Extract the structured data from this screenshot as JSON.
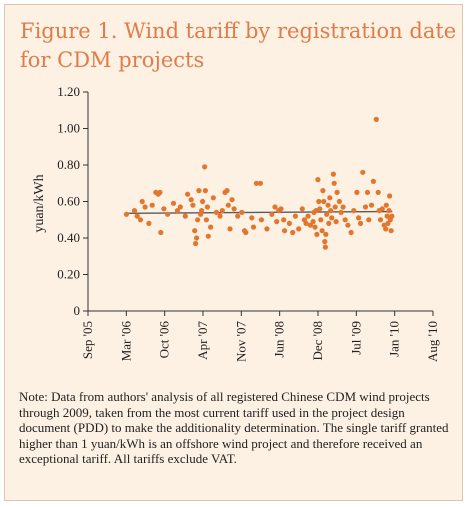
{
  "figure": {
    "title": "Figure 1. Wind tariff by registration date for CDM projects",
    "note": "Note: Data from authors' analysis of all registered Chinese CDM wind projects through 2009, taken from the most current tariff used in the project design document (PDD) to make the additionality determination. The single tariff granted higher than 1 yuan/kWh is an offshore wind project and therefore received an exceptional tariff. All tariffs exclude VAT."
  },
  "colors": {
    "background": "#fcf1e2",
    "title": "#e07b4a",
    "points": "#e2762f",
    "trend_line": "#5a5a5a",
    "axis": "#333333"
  },
  "chart_data": {
    "type": "scatter",
    "title": "",
    "xlabel": "",
    "ylabel": "yuan/kWh",
    "x_ticks": [
      "Sep '05",
      "Mar '06",
      "Oct '06",
      "Apr '07",
      "Nov '07",
      "Jun '08",
      "Dec '08",
      "Jul '09",
      "Jan '10",
      "Aug '10"
    ],
    "xlim": [
      "2005-09",
      "2010-08"
    ],
    "ylim": [
      0,
      1.2
    ],
    "y_ticks": [
      "0",
      "0.20",
      "0.40",
      "0.60",
      "0.80",
      "1.00",
      "1.20"
    ],
    "grid": false,
    "trend_line": {
      "x": [
        "2006-03-15",
        "2010-01-01"
      ],
      "y": [
        0.535,
        0.545
      ]
    },
    "series": [
      {
        "points": [
          {
            "x": "2006-03-20",
            "y": 0.53
          },
          {
            "x": "2006-05-01",
            "y": 0.55
          },
          {
            "x": "2006-05-15",
            "y": 0.52
          },
          {
            "x": "2006-06-01",
            "y": 0.5
          },
          {
            "x": "2006-06-10",
            "y": 0.6
          },
          {
            "x": "2006-06-25",
            "y": 0.57
          },
          {
            "x": "2006-07-15",
            "y": 0.48
          },
          {
            "x": "2006-08-01",
            "y": 0.58
          },
          {
            "x": "2006-08-20",
            "y": 0.65
          },
          {
            "x": "2006-09-01",
            "y": 0.64
          },
          {
            "x": "2006-09-10",
            "y": 0.65
          },
          {
            "x": "2006-09-15",
            "y": 0.43
          },
          {
            "x": "2006-10-01",
            "y": 0.56
          },
          {
            "x": "2006-10-20",
            "y": 0.53
          },
          {
            "x": "2006-11-20",
            "y": 0.59
          },
          {
            "x": "2006-12-10",
            "y": 0.55
          },
          {
            "x": "2006-12-25",
            "y": 0.57
          },
          {
            "x": "2007-01-20",
            "y": 0.52
          },
          {
            "x": "2007-02-01",
            "y": 0.64
          },
          {
            "x": "2007-02-20",
            "y": 0.61
          },
          {
            "x": "2007-03-01",
            "y": 0.58
          },
          {
            "x": "2007-03-10",
            "y": 0.44
          },
          {
            "x": "2007-03-15",
            "y": 0.37
          },
          {
            "x": "2007-03-20",
            "y": 0.4
          },
          {
            "x": "2007-03-25",
            "y": 0.5
          },
          {
            "x": "2007-04-01",
            "y": 0.66
          },
          {
            "x": "2007-04-10",
            "y": 0.53
          },
          {
            "x": "2007-04-15",
            "y": 0.55
          },
          {
            "x": "2007-04-20",
            "y": 0.6
          },
          {
            "x": "2007-05-01",
            "y": 0.79
          },
          {
            "x": "2007-05-05",
            "y": 0.66
          },
          {
            "x": "2007-05-10",
            "y": 0.5
          },
          {
            "x": "2007-05-15",
            "y": 0.57
          },
          {
            "x": "2007-05-20",
            "y": 0.41
          },
          {
            "x": "2007-06-01",
            "y": 0.46
          },
          {
            "x": "2007-06-15",
            "y": 0.62
          },
          {
            "x": "2007-07-01",
            "y": 0.54
          },
          {
            "x": "2007-07-20",
            "y": 0.52
          },
          {
            "x": "2007-08-01",
            "y": 0.55
          },
          {
            "x": "2007-08-15",
            "y": 0.65
          },
          {
            "x": "2007-08-25",
            "y": 0.66
          },
          {
            "x": "2007-09-01",
            "y": 0.58
          },
          {
            "x": "2007-09-10",
            "y": 0.45
          },
          {
            "x": "2007-09-20",
            "y": 0.61
          },
          {
            "x": "2007-10-01",
            "y": 0.56
          },
          {
            "x": "2007-10-20",
            "y": 0.52
          },
          {
            "x": "2007-11-10",
            "y": 0.54
          },
          {
            "x": "2007-11-25",
            "y": 0.44
          },
          {
            "x": "2007-12-01",
            "y": 0.43
          },
          {
            "x": "2008-01-01",
            "y": 0.51
          },
          {
            "x": "2008-01-10",
            "y": 0.46
          },
          {
            "x": "2008-01-25",
            "y": 0.7
          },
          {
            "x": "2008-02-15",
            "y": 0.7
          },
          {
            "x": "2008-02-20",
            "y": 0.5
          },
          {
            "x": "2008-03-20",
            "y": 0.45
          },
          {
            "x": "2008-04-15",
            "y": 0.53
          },
          {
            "x": "2008-05-01",
            "y": 0.57
          },
          {
            "x": "2008-05-10",
            "y": 0.49
          },
          {
            "x": "2008-05-20",
            "y": 0.55
          },
          {
            "x": "2008-06-01",
            "y": 0.56
          },
          {
            "x": "2008-06-15",
            "y": 0.5
          },
          {
            "x": "2008-06-20",
            "y": 0.44
          },
          {
            "x": "2008-07-15",
            "y": 0.48
          },
          {
            "x": "2008-08-01",
            "y": 0.43
          },
          {
            "x": "2008-08-15",
            "y": 0.52
          },
          {
            "x": "2008-09-01",
            "y": 0.45
          },
          {
            "x": "2008-09-20",
            "y": 0.56
          },
          {
            "x": "2008-10-01",
            "y": 0.5
          },
          {
            "x": "2008-10-10",
            "y": 0.48
          },
          {
            "x": "2008-10-20",
            "y": 0.52
          },
          {
            "x": "2008-11-01",
            "y": 0.47
          },
          {
            "x": "2008-11-15",
            "y": 0.49
          },
          {
            "x": "2008-11-20",
            "y": 0.54
          },
          {
            "x": "2008-11-25",
            "y": 0.46
          },
          {
            "x": "2008-12-01",
            "y": 0.55
          },
          {
            "x": "2008-12-05",
            "y": 0.42
          },
          {
            "x": "2008-12-10",
            "y": 0.72
          },
          {
            "x": "2008-12-15",
            "y": 0.6
          },
          {
            "x": "2008-12-20",
            "y": 0.56
          },
          {
            "x": "2008-12-25",
            "y": 0.5
          },
          {
            "x": "2009-01-01",
            "y": 0.44
          },
          {
            "x": "2009-01-05",
            "y": 0.66
          },
          {
            "x": "2009-01-10",
            "y": 0.6
          },
          {
            "x": "2009-01-15",
            "y": 0.38
          },
          {
            "x": "2009-01-18",
            "y": 0.35
          },
          {
            "x": "2009-01-20",
            "y": 0.42
          },
          {
            "x": "2009-01-25",
            "y": 0.53
          },
          {
            "x": "2009-02-01",
            "y": 0.58
          },
          {
            "x": "2009-02-05",
            "y": 0.48
          },
          {
            "x": "2009-02-10",
            "y": 0.62
          },
          {
            "x": "2009-02-15",
            "y": 0.55
          },
          {
            "x": "2009-02-20",
            "y": 0.51
          },
          {
            "x": "2009-03-01",
            "y": 0.75
          },
          {
            "x": "2009-03-05",
            "y": 0.7
          },
          {
            "x": "2009-03-10",
            "y": 0.57
          },
          {
            "x": "2009-03-15",
            "y": 0.49
          },
          {
            "x": "2009-03-20",
            "y": 0.65
          },
          {
            "x": "2009-04-01",
            "y": 0.6
          },
          {
            "x": "2009-04-10",
            "y": 0.54
          },
          {
            "x": "2009-04-20",
            "y": 0.57
          },
          {
            "x": "2009-05-01",
            "y": 0.5
          },
          {
            "x": "2009-05-15",
            "y": 0.47
          },
          {
            "x": "2009-06-01",
            "y": 0.43
          },
          {
            "x": "2009-06-15",
            "y": 0.55
          },
          {
            "x": "2009-07-01",
            "y": 0.65
          },
          {
            "x": "2009-07-10",
            "y": 0.51
          },
          {
            "x": "2009-07-20",
            "y": 0.48
          },
          {
            "x": "2009-08-01",
            "y": 0.76
          },
          {
            "x": "2009-08-15",
            "y": 0.57
          },
          {
            "x": "2009-08-25",
            "y": 0.65
          },
          {
            "x": "2009-09-01",
            "y": 0.5
          },
          {
            "x": "2009-09-15",
            "y": 0.58
          },
          {
            "x": "2009-09-25",
            "y": 0.71
          },
          {
            "x": "2009-10-10",
            "y": 1.05
          },
          {
            "x": "2009-10-20",
            "y": 0.65
          },
          {
            "x": "2009-10-25",
            "y": 0.55
          },
          {
            "x": "2009-11-01",
            "y": 0.5
          },
          {
            "x": "2009-11-10",
            "y": 0.56
          },
          {
            "x": "2009-11-20",
            "y": 0.47
          },
          {
            "x": "2009-11-28",
            "y": 0.45
          },
          {
            "x": "2009-12-01",
            "y": 0.58
          },
          {
            "x": "2009-12-05",
            "y": 0.52
          },
          {
            "x": "2009-12-10",
            "y": 0.48
          },
          {
            "x": "2009-12-15",
            "y": 0.55
          },
          {
            "x": "2009-12-18",
            "y": 0.63
          },
          {
            "x": "2009-12-22",
            "y": 0.5
          },
          {
            "x": "2009-12-26",
            "y": 0.44
          },
          {
            "x": "2009-12-30",
            "y": 0.52
          }
        ]
      }
    ]
  }
}
